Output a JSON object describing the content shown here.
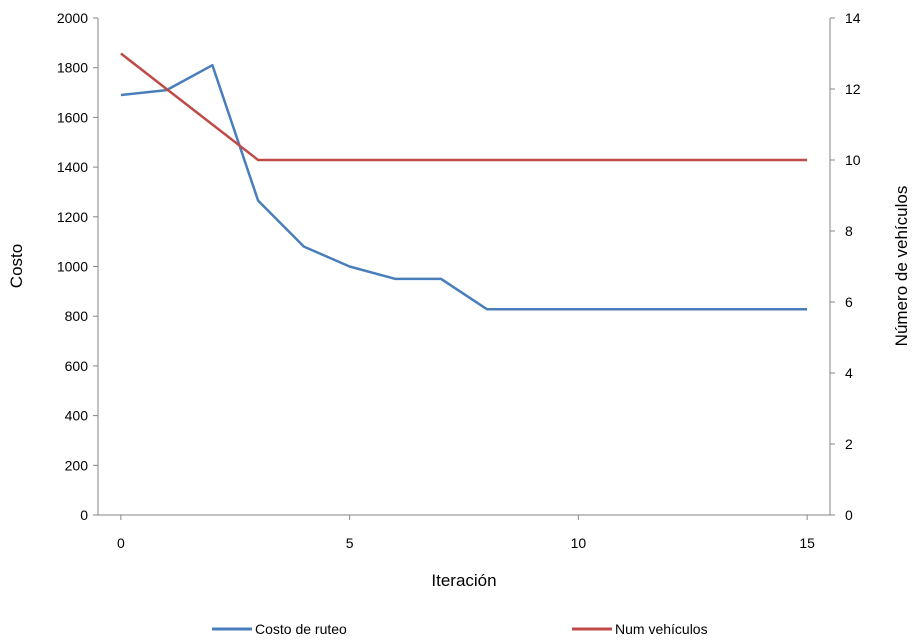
{
  "chart_data": {
    "type": "line",
    "title": "",
    "xlabel": "Iteración",
    "ylabel": "Costo",
    "y2label": "Número de vehículos",
    "x": [
      0,
      1,
      2,
      3,
      4,
      5,
      6,
      7,
      8,
      9,
      10,
      11,
      12,
      13,
      14,
      15
    ],
    "xticks": [
      0,
      5,
      10,
      15
    ],
    "xlim": [
      -0.5,
      15.5
    ],
    "ylim": [
      0,
      2000
    ],
    "yticks": [
      0,
      200,
      400,
      600,
      800,
      1000,
      1200,
      1400,
      1600,
      1800,
      2000
    ],
    "y2lim": [
      0,
      14
    ],
    "y2ticks": [
      0,
      2,
      4,
      6,
      8,
      10,
      12,
      14
    ],
    "grid": false,
    "legend_position": "bottom",
    "series": [
      {
        "name": "Costo de ruteo",
        "axis": "left",
        "color": "#4a7ebb",
        "values": [
          1690,
          1710,
          1810,
          1265,
          1080,
          1000,
          950,
          950,
          828,
          828,
          828,
          828,
          828,
          828,
          828,
          828
        ]
      },
      {
        "name": "Num vehículos",
        "axis": "right",
        "color": "#be4b48",
        "values": [
          13,
          12,
          11,
          10,
          10,
          10,
          10,
          10,
          10,
          10,
          10,
          10,
          10,
          10,
          10,
          10
        ]
      }
    ]
  }
}
